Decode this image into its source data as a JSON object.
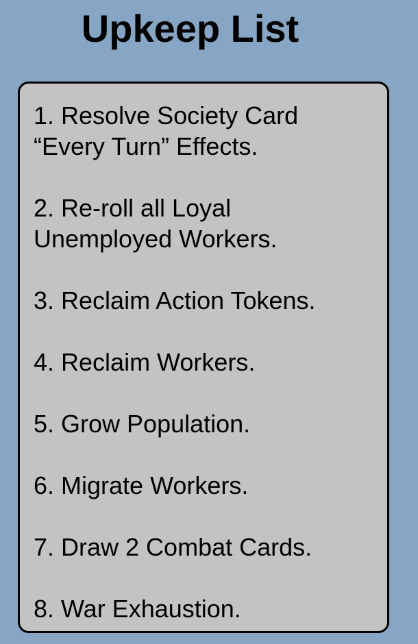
{
  "title": "Upkeep List",
  "steps": [
    {
      "line1": "1. Resolve Society Card",
      "line2": "“Every Turn” Effects."
    },
    {
      "line1": "2. Re-roll all Loyal",
      "line2": "Unemployed Workers."
    },
    {
      "line1": "3. Reclaim Action Tokens."
    },
    {
      "line1": "4. Reclaim Workers."
    },
    {
      "line1": "5. Grow Population."
    },
    {
      "line1": "6. Migrate Workers."
    },
    {
      "line1": "7. Draw 2 Combat Cards."
    },
    {
      "line1": "8. War Exhaustion."
    }
  ],
  "colors": {
    "background": "#87a5c4",
    "card": "#c3c3c3",
    "text": "#000000"
  }
}
